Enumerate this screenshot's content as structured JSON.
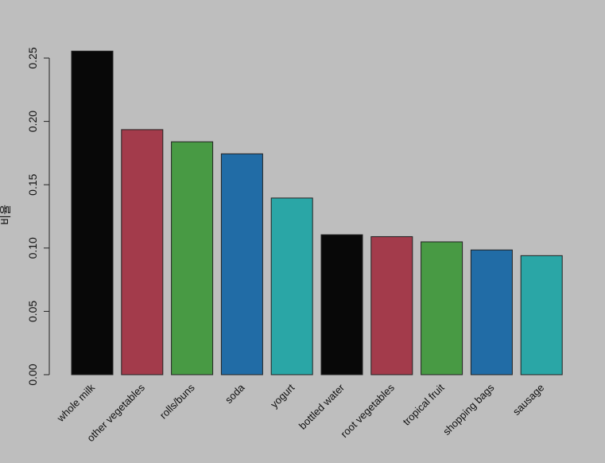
{
  "chart_data": {
    "type": "bar",
    "title": "",
    "xlabel": "",
    "ylabel": "비율",
    "ylim": [
      0,
      0.25
    ],
    "yticks": [
      "0.00",
      "0.05",
      "0.10",
      "0.15",
      "0.20",
      "0.25"
    ],
    "grid": false,
    "categories": [
      "whole milk",
      "other vegetables",
      "rolls/buns",
      "soda",
      "yogurt",
      "bottled water",
      "root vegetables",
      "tropical fruit",
      "shopping bags",
      "sausage"
    ],
    "values": [
      0.2555,
      0.1935,
      0.1839,
      0.1744,
      0.1395,
      0.1105,
      0.109,
      0.1049,
      0.0985,
      0.094
    ],
    "colors": [
      "#080808",
      "#a33b4b",
      "#489a44",
      "#216ca6",
      "#2aa6a6",
      "#080808",
      "#a33b4b",
      "#489a44",
      "#216ca6",
      "#2aa6a6"
    ],
    "background": "#bebebe"
  }
}
